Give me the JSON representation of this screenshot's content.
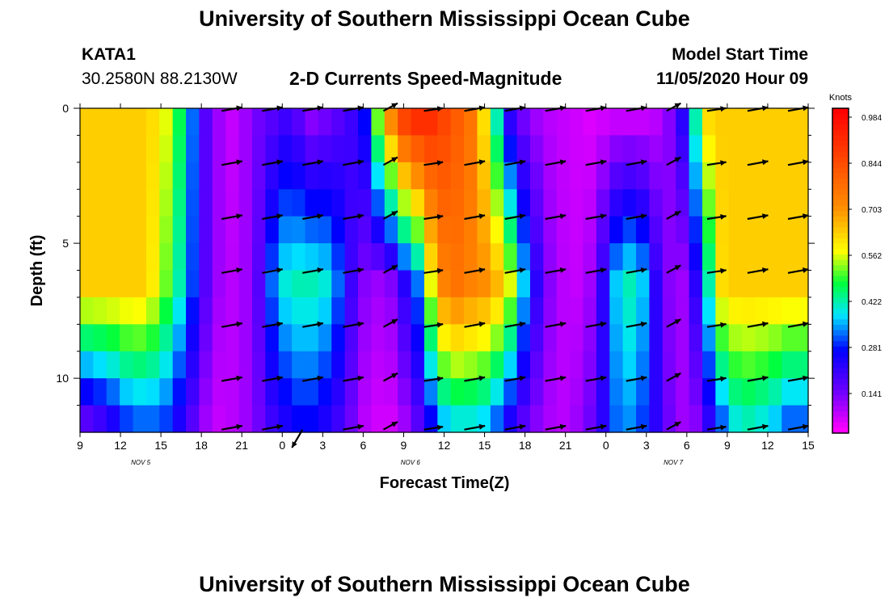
{
  "header": {
    "title": "University of Southern Mississippi Ocean Cube",
    "station": "KATA1",
    "coords": "30.2580N 88.2130W",
    "plot_title": "2-D Currents Speed-Magnitude",
    "model_label": "Model Start Time",
    "model_time": "11/05/2020 Hour 09",
    "footer_title": "University of Southern Mississippi Ocean Cube"
  },
  "chart_data": {
    "type": "heatmap",
    "title": "2-D Currents Speed-Magnitude",
    "xlabel": "Forecast Time(Z)",
    "ylabel": "Depth (ft)",
    "x_range_hours": [
      0,
      54
    ],
    "y_range_ft": [
      0,
      12
    ],
    "y_inverted": true,
    "x_tick_labels": [
      "9",
      "12",
      "15",
      "18",
      "21",
      "0",
      "3",
      "6",
      "9",
      "12",
      "15",
      "18",
      "21",
      "0",
      "3",
      "6",
      "9",
      "12",
      "15"
    ],
    "y_tick_labels": [
      "0",
      "5",
      "10"
    ],
    "date_labels": [
      "NOV 5",
      "NOV 6",
      "NOV 7"
    ],
    "colorbar": {
      "label": "Knots",
      "ticks": [
        "0.984",
        "0.844",
        "0.703",
        "0.562",
        "0.422",
        "0.281",
        "0.141"
      ],
      "min": 0,
      "max": 1.0
    },
    "speed_profile_surface": [
      0.62,
      0.62,
      0.62,
      0.62,
      0.62,
      0.6,
      0.55,
      0.45,
      0.3,
      0.15,
      0.08,
      0.05,
      0.08,
      0.12,
      0.15,
      0.18,
      0.15,
      0.1,
      0.12,
      0.15,
      0.18,
      0.25,
      0.5,
      0.7,
      0.85,
      0.9,
      0.9,
      0.85,
      0.8,
      0.75,
      0.6,
      0.4,
      0.2,
      0.12,
      0.08,
      0.06,
      0.05,
      0.04,
      0.03,
      0.04,
      0.05,
      0.05,
      0.05,
      0.06,
      0.1,
      0.2,
      0.4,
      0.6,
      0.62,
      0.62,
      0.62,
      0.62,
      0.62,
      0.62,
      0.62
    ],
    "speed_profile_mid": [
      0.62,
      0.62,
      0.62,
      0.62,
      0.62,
      0.58,
      0.5,
      0.4,
      0.28,
      0.15,
      0.08,
      0.06,
      0.08,
      0.15,
      0.3,
      0.38,
      0.4,
      0.4,
      0.38,
      0.3,
      0.18,
      0.1,
      0.08,
      0.1,
      0.2,
      0.3,
      0.55,
      0.72,
      0.75,
      0.72,
      0.7,
      0.65,
      0.55,
      0.35,
      0.2,
      0.1,
      0.06,
      0.05,
      0.08,
      0.2,
      0.35,
      0.4,
      0.35,
      0.2,
      0.1,
      0.08,
      0.2,
      0.4,
      0.6,
      0.62,
      0.62,
      0.62,
      0.62,
      0.62,
      0.62
    ],
    "speed_profile_bottom": [
      0.15,
      0.18,
      0.22,
      0.28,
      0.3,
      0.3,
      0.28,
      0.22,
      0.15,
      0.08,
      0.05,
      0.06,
      0.08,
      0.12,
      0.18,
      0.22,
      0.25,
      0.25,
      0.22,
      0.18,
      0.12,
      0.06,
      0.04,
      0.04,
      0.08,
      0.15,
      0.25,
      0.35,
      0.38,
      0.38,
      0.36,
      0.3,
      0.22,
      0.15,
      0.1,
      0.07,
      0.06,
      0.08,
      0.12,
      0.2,
      0.3,
      0.32,
      0.28,
      0.2,
      0.12,
      0.08,
      0.1,
      0.2,
      0.3,
      0.38,
      0.4,
      0.38,
      0.35,
      0.3,
      0.3
    ]
  }
}
